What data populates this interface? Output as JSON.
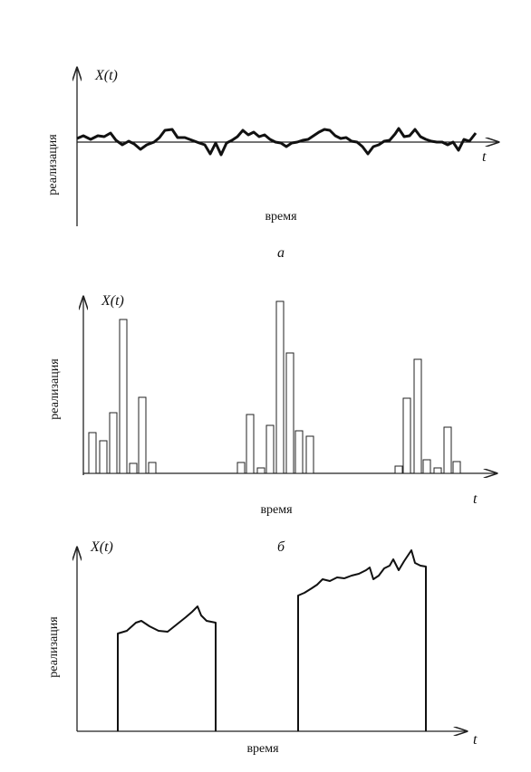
{
  "panels": [
    {
      "y_label": "X(t)",
      "axis_label": "реализация",
      "x_axis_symbol": "t",
      "x_label": "время",
      "caption": "а"
    },
    {
      "y_label": "X(t)",
      "axis_label": "реализация",
      "x_axis_symbol": "t",
      "x_label": "время",
      "caption": "б"
    },
    {
      "y_label": "X(t)",
      "axis_label": "реализация",
      "x_axis_symbol": "t",
      "x_label": "время"
    }
  ]
}
